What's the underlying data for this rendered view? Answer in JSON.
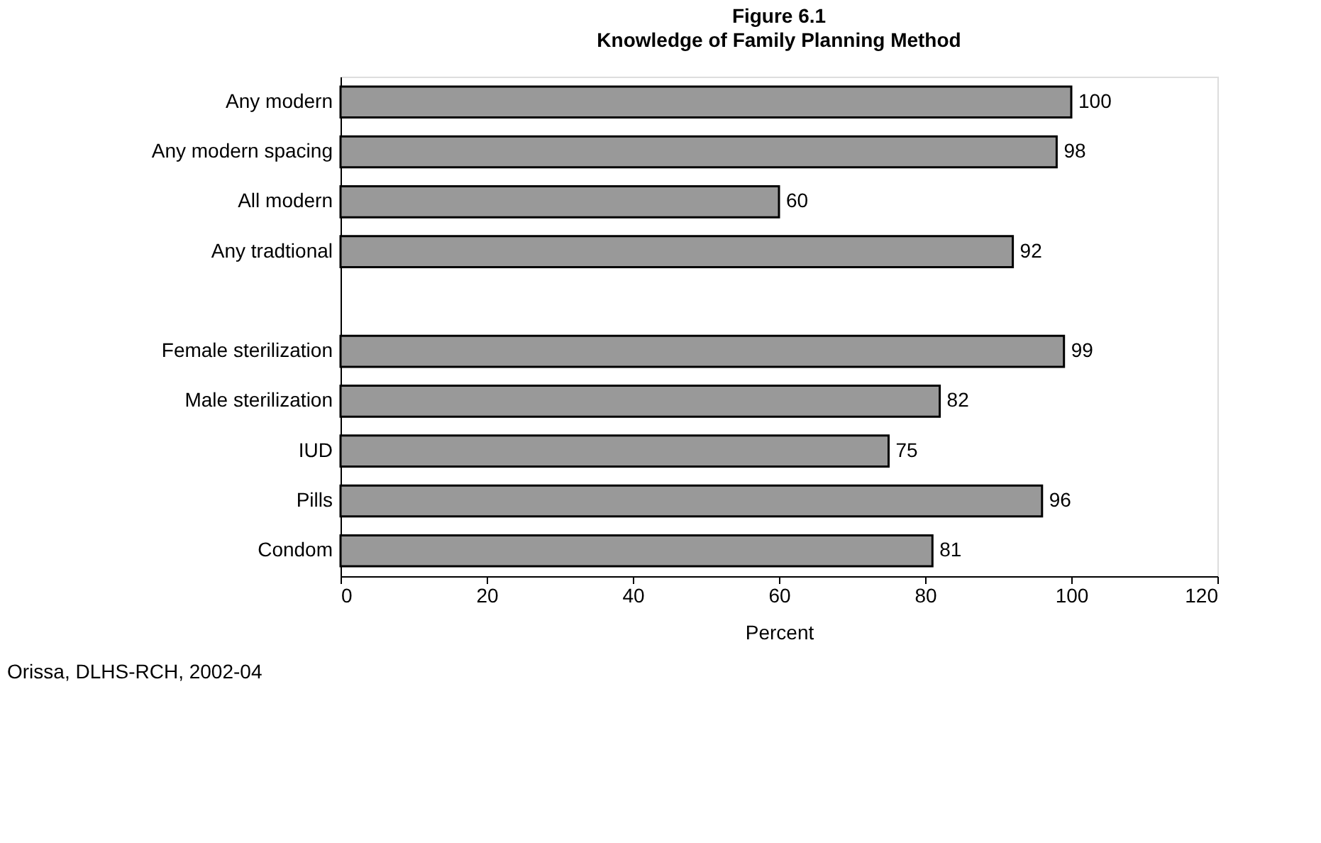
{
  "chart_data": {
    "type": "bar",
    "orientation": "horizontal",
    "title": "Figure 6.1",
    "subtitle": "Knowledge of Family Planning Method",
    "xlabel": "Percent",
    "categories": [
      "Any modern",
      "Any modern spacing",
      "All modern",
      "Any tradtional",
      null,
      "Female sterilization",
      "Male sterilization",
      "IUD",
      "Pills",
      "Condom"
    ],
    "values": [
      100,
      98,
      60,
      92,
      null,
      99,
      82,
      75,
      96,
      81
    ],
    "color": "#999999",
    "data_labels": true,
    "xlim": [
      0,
      120
    ],
    "xticks": [
      0,
      20,
      40,
      60,
      80,
      100,
      120
    ],
    "grid": false,
    "annotations": [
      "Orissa, DLHS-RCH, 2002-04"
    ]
  }
}
